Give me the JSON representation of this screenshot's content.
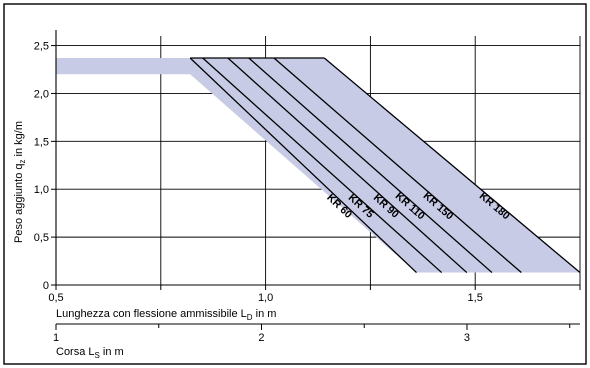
{
  "chart_data": {
    "type": "line",
    "ylabel": "Peso aggiunto  q",
    "ylabel_sub": "z",
    "ylabel_unit": " in kg/m",
    "xlabel": "Lunghezza con flessione ammissibile L",
    "xlabel_sub": "D",
    "xlabel_unit": " in m",
    "x2label": "Corsa L",
    "x2label_sub": "S",
    "x2label_unit": " in m",
    "xlim": [
      0.5,
      1.75
    ],
    "ylim": [
      0,
      2.6
    ],
    "x2lim": [
      1,
      3.55
    ],
    "x_ticks": [
      "0,5",
      "1,0",
      "1,5"
    ],
    "x_tick_values": [
      0.5,
      1.0,
      1.5
    ],
    "y_ticks": [
      "0",
      "0,5",
      "1,0",
      "1,5",
      "2,0",
      "2,5"
    ],
    "y_tick_values": [
      0,
      0.5,
      1.0,
      1.5,
      2.0,
      2.5
    ],
    "x2_ticks": [
      "1",
      "2",
      "3"
    ],
    "x2_tick_values": [
      1,
      2,
      3
    ],
    "grid": true,
    "band": {
      "color": "#c7cbe6",
      "top": [
        [
          0.5,
          2.37
        ],
        [
          1.14,
          2.37
        ],
        [
          1.75,
          0.13
        ]
      ],
      "bottom": [
        [
          0.5,
          2.2
        ],
        [
          0.82,
          2.2
        ],
        [
          1.36,
          0.13
        ]
      ]
    },
    "series": [
      {
        "name": "KR 60",
        "points": [
          [
            0.82,
            2.37
          ],
          [
            1.36,
            0.13
          ]
        ]
      },
      {
        "name": "KR 75",
        "points": [
          [
            0.85,
            2.37
          ],
          [
            1.42,
            0.13
          ]
        ]
      },
      {
        "name": "KR 90",
        "points": [
          [
            0.91,
            2.37
          ],
          [
            1.48,
            0.13
          ]
        ]
      },
      {
        "name": "KR 110",
        "points": [
          [
            0.96,
            2.37
          ],
          [
            1.54,
            0.13
          ]
        ]
      },
      {
        "name": "KR 150",
        "points": [
          [
            1.02,
            2.37
          ],
          [
            1.61,
            0.13
          ]
        ]
      },
      {
        "name": "KR 180",
        "points": [
          [
            1.14,
            2.37
          ],
          [
            1.75,
            0.13
          ]
        ]
      }
    ],
    "line_color": "#000000"
  }
}
